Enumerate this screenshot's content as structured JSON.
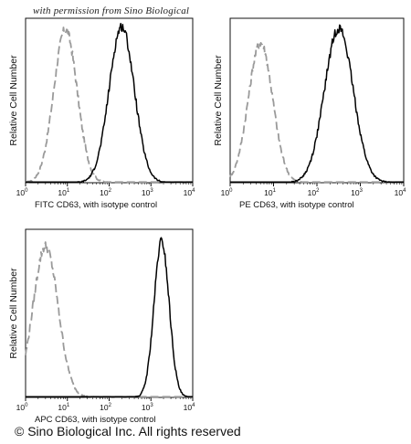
{
  "watermark": "with permission from Sino Biological",
  "copyright": "© Sino Biological Inc. All rights reserved",
  "colors": {
    "isotype": "#9a9a9a",
    "sample": "#000000",
    "axis": "#111111"
  },
  "chart_data": [
    {
      "type": "line",
      "title": "",
      "xlabel": "FITC  CD63,  with isotype control",
      "ylabel": "Relative Cell Number",
      "xscale": "log",
      "xlim": [
        1,
        10000
      ],
      "x_tick_labels": [
        "10",
        "10",
        "10",
        "10",
        "10"
      ],
      "x_tick_exponents": [
        "0",
        "1",
        "2",
        "3",
        "4"
      ],
      "grid": false,
      "series": [
        {
          "style": "dashed",
          "color": "#9a9a9a",
          "peak_x": 9,
          "width_decades": 0.28,
          "peak_y": 0.93
        },
        {
          "style": "solid",
          "color": "#000000",
          "peak_x": 200,
          "width_decades": 0.3,
          "peak_y": 0.95
        }
      ]
    },
    {
      "type": "line",
      "title": "",
      "xlabel": "PE  CD63,  with isotype control",
      "ylabel": "Relative Cell Number",
      "xscale": "log",
      "xlim": [
        1,
        10000
      ],
      "x_tick_labels": [
        "10",
        "10",
        "10",
        "10",
        "10"
      ],
      "x_tick_exponents": [
        "0",
        "1",
        "2",
        "3",
        "4"
      ],
      "grid": false,
      "series": [
        {
          "style": "dashed",
          "color": "#9a9a9a",
          "peak_x": 5,
          "width_decades": 0.28,
          "peak_y": 0.85
        },
        {
          "style": "solid",
          "color": "#000000",
          "peak_x": 320,
          "width_decades": 0.33,
          "peak_y": 0.94
        }
      ]
    },
    {
      "type": "line",
      "title": "",
      "xlabel": "APC CD63, with isotype control",
      "ylabel": "Relative Cell Number",
      "xscale": "log",
      "xlim": [
        1,
        10000
      ],
      "x_tick_labels": [
        "10",
        "10",
        "10",
        "10",
        "10"
      ],
      "x_tick_exponents": [
        "0",
        "1",
        "2",
        "3",
        "4"
      ],
      "grid": false,
      "series": [
        {
          "style": "dashed",
          "color": "#9a9a9a",
          "peak_x": 3,
          "width_decades": 0.3,
          "peak_y": 0.9
        },
        {
          "style": "solid",
          "color": "#000000",
          "peak_x": 1800,
          "width_decades": 0.18,
          "peak_y": 0.93
        }
      ]
    }
  ]
}
